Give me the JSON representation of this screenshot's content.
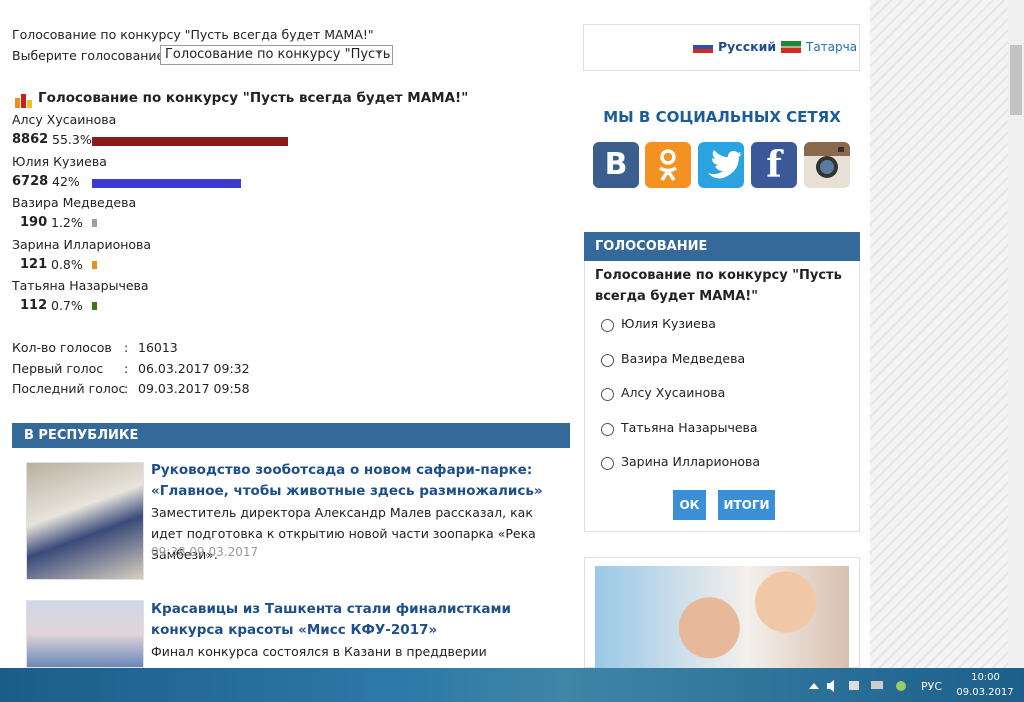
{
  "header": {
    "title": "Голосование по конкурсу \"Пусть всегда будет МАМА!\"",
    "select_label": "Выберите голосование",
    "select_value": "Голосование по конкурсу \"Пусть всегда будет МАМА!\""
  },
  "poll": {
    "title": "Голосование по конкурсу \"Пусть всегда будет МАМА!\"",
    "results": [
      {
        "name": "Алсу Хусаинова",
        "votes": 8862,
        "percent": {
          "value": 55.3,
          "label": "55.3%"
        },
        "color": "#8b1a1a"
      },
      {
        "name": "Юлия Кузиева",
        "votes": 6728,
        "percent": {
          "value": 42,
          "label": "42%"
        },
        "color": "#3b3bd0"
      },
      {
        "name": "Вазира Медведева",
        "votes": 190,
        "percent": {
          "value": 1.2,
          "label": "1.2%"
        },
        "color": "#a0a0a0"
      },
      {
        "name": "Зарина Илларионова",
        "votes": 121,
        "percent": {
          "value": 0.8,
          "label": "0.8%"
        },
        "color": "#e8901a"
      },
      {
        "name": "Татьяна Назарычева",
        "votes": 112,
        "percent": {
          "value": 0.7,
          "label": "0.7%"
        },
        "color": "#3a7a1a"
      }
    ]
  },
  "stats": {
    "separator": ":",
    "rows": [
      {
        "label": "Кол-во голосов",
        "value": "16013"
      },
      {
        "label": "Первый голос",
        "value": "06.03.2017 09:32"
      },
      {
        "label": "Последний голос",
        "value": "09.03.2017 09:58"
      }
    ]
  },
  "news": {
    "title": "В РЕСПУБЛИКЕ",
    "items": [
      {
        "title": "Руководство зообо­тсада о новом сафари-парке: «Главное, чтобы животные здесь размножались»",
        "text": "Заместитель директора Александр Малев рассказал, как идет подготовка к открытию новой части зоопарка «Река Замбези».",
        "time": "09:38 09.03.2017"
      },
      {
        "title": "Красавицы из Ташкента стали финалистками конкурса красоты «Мисс КФУ-2017»",
        "text": "Финал конкурса состоялся в Казани в преддверии"
      }
    ]
  },
  "sidebar": {
    "languages": [
      "Русский",
      "Татарча"
    ],
    "social_title": "МЫ В СОЦИАЛЬНЫХ СЕТЯХ",
    "social": {
      "vk": "В",
      "facebook": "f"
    },
    "vote": {
      "title": "ГОЛОСОВАНИЕ",
      "question": "Голосование по конкурсу \"Пусть всегда будет МАМА!\"",
      "options": [
        "Юлия Кузиева",
        "Вазира Медведева",
        "Алсу Хусаинова",
        "Татьяна Назарычева",
        "Зарина Илларионова"
      ],
      "buttons": [
        "ОК",
        "ИТОГИ"
      ]
    }
  },
  "taskbar": {
    "language": "РУС",
    "time": "10:00",
    "date": "09.03.2017"
  }
}
